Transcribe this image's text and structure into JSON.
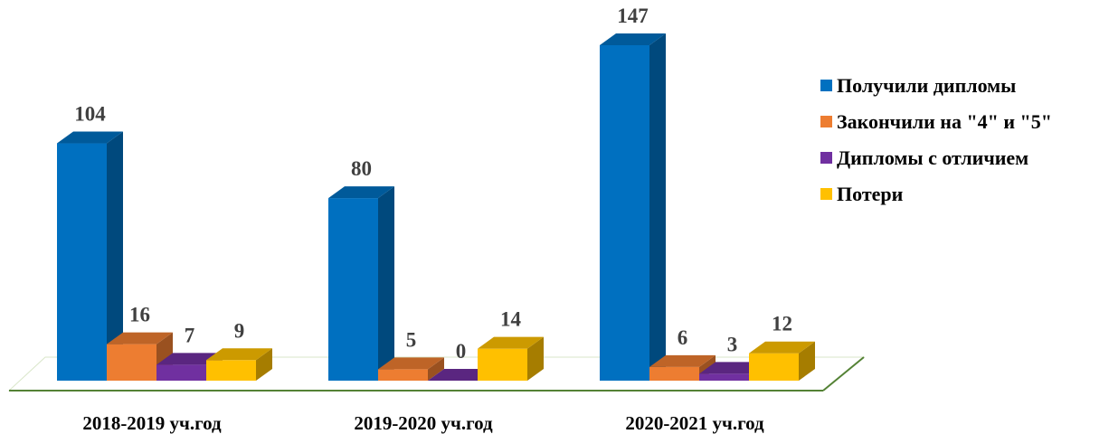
{
  "chart_data": {
    "type": "bar3d",
    "categories": [
      "2018-2019 уч.год",
      "2019-2020 уч.год",
      "2020-2021 уч.год"
    ],
    "series": [
      {
        "name": "Получили дипломы",
        "color": "#0070c0",
        "values": [
          104,
          80,
          147
        ]
      },
      {
        "name": "Закончили на \"4\" и \"5\"",
        "color": "#ed7d31",
        "values": [
          16,
          5,
          6
        ]
      },
      {
        "name": "Дипломы с отличием",
        "color": "#7030a0",
        "values": [
          7,
          0,
          3
        ]
      },
      {
        "name": "Потери",
        "color": "#ffc000",
        "values": [
          9,
          14,
          12
        ]
      }
    ],
    "legend": "right"
  }
}
